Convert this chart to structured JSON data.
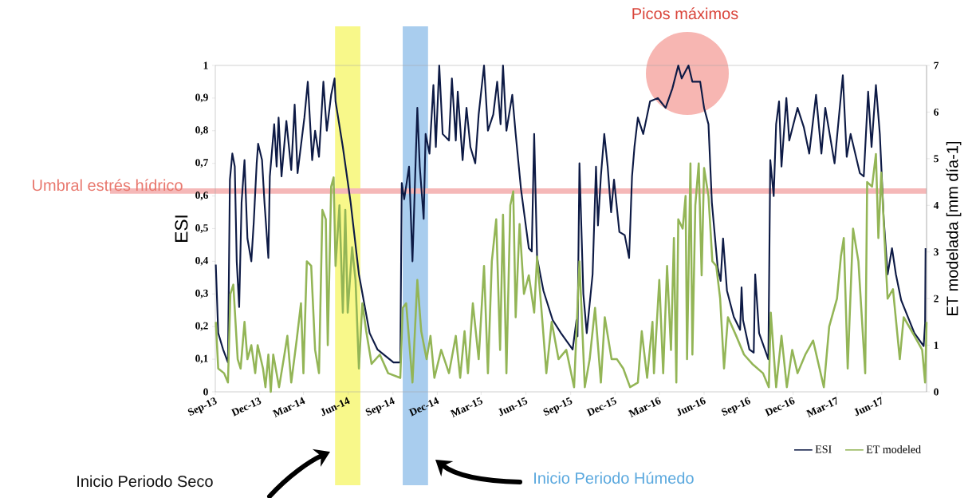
{
  "chart_data": {
    "type": "line",
    "xlim": [
      "2013-09-01",
      "2017-09-01"
    ],
    "xticks": [
      {
        "value": "2013-09-01",
        "label": "Sep-13"
      },
      {
        "value": "2013-12-01",
        "label": "Dec-13"
      },
      {
        "value": "2014-03-01",
        "label": "Mar-14"
      },
      {
        "value": "2014-06-01",
        "label": "Jun-14"
      },
      {
        "value": "2014-09-01",
        "label": "Sep-14"
      },
      {
        "value": "2014-12-01",
        "label": "Dec-14"
      },
      {
        "value": "2015-03-01",
        "label": "Mar-15"
      },
      {
        "value": "2015-06-01",
        "label": "Jun-15"
      },
      {
        "value": "2015-09-01",
        "label": "Sep-15"
      },
      {
        "value": "2015-12-01",
        "label": "Dec-15"
      },
      {
        "value": "2016-03-01",
        "label": "Mar-16"
      },
      {
        "value": "2016-06-01",
        "label": "Jun-16"
      },
      {
        "value": "2016-09-01",
        "label": "Sep-16"
      },
      {
        "value": "2016-12-01",
        "label": "Dec-16"
      },
      {
        "value": "2017-03-01",
        "label": "Mar-17"
      },
      {
        "value": "2017-06-01",
        "label": "Jun-17"
      }
    ],
    "ylabel": "ESI",
    "y2label": "ET modelada [mm día-1]",
    "ylim": [
      0,
      1
    ],
    "yticks": [
      0,
      {
        "value": 0.1,
        "label": "0,1"
      },
      {
        "value": 0.2,
        "label": "0,2"
      },
      {
        "value": 0.3,
        "label": "0,3"
      },
      {
        "value": 0.4,
        "label": "0,4"
      },
      {
        "value": 0.5,
        "label": "0,5"
      },
      {
        "value": 0.6,
        "label": "0,6"
      },
      {
        "value": 0.7,
        "label": "0,7"
      },
      {
        "value": 0.8,
        "label": "0,8"
      },
      {
        "value": 0.9,
        "label": "0,9"
      },
      1
    ],
    "y2lim": [
      0,
      7
    ],
    "y2ticks": [
      0,
      1,
      2,
      3,
      4,
      5,
      6,
      7
    ],
    "legend": "bottom right",
    "series": [
      {
        "name": "ESI",
        "color": "#0d1a45",
        "x": [
          "2013-09-02",
          "2013-09-07",
          "2013-09-17",
          "2013-09-27",
          "2013-10-01",
          "2013-10-06",
          "2013-10-11",
          "2013-10-15",
          "2013-10-20",
          "2013-10-25",
          "2013-10-31",
          "2013-11-06",
          "2013-11-14",
          "2013-11-19",
          "2013-11-25",
          "2013-11-28",
          "2013-12-06",
          "2013-12-11",
          "2013-12-19",
          "2013-12-22",
          "2013-12-31",
          "2014-01-05",
          "2014-01-09",
          "2014-01-15",
          "2014-01-25",
          "2014-02-04",
          "2014-02-11",
          "2014-02-17",
          "2014-03-03",
          "2014-03-10",
          "2014-03-19",
          "2014-03-25",
          "2014-04-02",
          "2014-04-11",
          "2014-04-18",
          "2014-04-27",
          "2014-05-04",
          "2014-05-06",
          "2014-05-21",
          "2014-06-06",
          "2014-06-23",
          "2014-07-15",
          "2014-07-31",
          "2014-09-02",
          "2014-09-16",
          "2014-09-19",
          "2014-09-24",
          "2014-10-04",
          "2014-10-11",
          "2014-10-21",
          "2014-10-26",
          "2014-11-03",
          "2014-11-07",
          "2014-11-15",
          "2014-11-23",
          "2014-11-28",
          "2014-12-05",
          "2014-12-12",
          "2014-12-25",
          "2014-12-31",
          "2015-01-08",
          "2015-01-12",
          "2015-01-22",
          "2015-01-30",
          "2015-02-07",
          "2015-02-17",
          "2015-02-24",
          "2015-03-07",
          "2015-03-15",
          "2015-03-26",
          "2015-04-03",
          "2015-04-10",
          "2015-04-15",
          "2015-04-22",
          "2015-05-04",
          "2015-05-11",
          "2015-05-22",
          "2015-06-07",
          "2015-06-13",
          "2015-06-18",
          "2015-06-24",
          "2015-07-07",
          "2015-07-26",
          "2015-08-12",
          "2015-09-05",
          "2015-09-13",
          "2015-09-15",
          "2015-09-19",
          "2015-09-27",
          "2015-10-04",
          "2015-10-10",
          "2015-10-16",
          "2015-10-23",
          "2015-10-27",
          "2015-11-02",
          "2015-11-09",
          "2015-11-16",
          "2015-11-23",
          "2015-11-29",
          "2015-12-10",
          "2015-12-21",
          "2015-12-30",
          "2016-01-05",
          "2016-01-10",
          "2016-01-17",
          "2016-01-28",
          "2016-02-11",
          "2016-02-27",
          "2016-03-14",
          "2016-03-28",
          "2016-04-09",
          "2016-04-16",
          "2016-04-30",
          "2016-05-08",
          "2016-05-24",
          "2016-06-01",
          "2016-06-10",
          "2016-06-17",
          "2016-06-29",
          "2016-07-05",
          "2016-07-10",
          "2016-07-18",
          "2016-08-01",
          "2016-08-14",
          "2016-08-17",
          "2016-08-20",
          "2016-09-02",
          "2016-09-11",
          "2016-09-14",
          "2016-09-22",
          "2016-10-11",
          "2016-10-15",
          "2016-10-22",
          "2016-10-27",
          "2016-11-02",
          "2016-11-07",
          "2016-11-17",
          "2016-11-23",
          "2016-12-10",
          "2016-12-23",
          "2017-01-03",
          "2017-01-17",
          "2017-01-28",
          "2017-02-05",
          "2017-02-24",
          "2017-03-13",
          "2017-03-21",
          "2017-03-29",
          "2017-04-17",
          "2017-04-25",
          "2017-05-04",
          "2017-05-11",
          "2017-05-20",
          "2017-05-28",
          "2017-06-05",
          "2017-06-13",
          "2017-06-22",
          "2017-06-30",
          "2017-07-11",
          "2017-08-07",
          "2017-08-26",
          "2017-08-29",
          "2017-08-30"
        ],
        "values": [
          0.39,
          0.18,
          0.13,
          0.09,
          0.65,
          0.73,
          0.69,
          0.4,
          0.26,
          0.58,
          0.71,
          0.47,
          0.4,
          0.52,
          0.7,
          0.76,
          0.71,
          0.58,
          0.41,
          0.66,
          0.82,
          0.69,
          0.84,
          0.66,
          0.83,
          0.68,
          0.88,
          0.67,
          0.84,
          0.95,
          0.71,
          0.8,
          0.72,
          0.95,
          0.8,
          0.91,
          0.96,
          0.89,
          0.75,
          0.58,
          0.36,
          0.18,
          0.13,
          0.09,
          0.09,
          0.64,
          0.59,
          0.69,
          0.4,
          0.87,
          0.69,
          0.53,
          0.79,
          0.73,
          0.94,
          0.75,
          1.0,
          0.79,
          0.77,
          0.96,
          0.77,
          0.92,
          0.71,
          0.87,
          0.75,
          0.7,
          0.85,
          1.0,
          0.8,
          0.85,
          0.95,
          0.82,
          1.0,
          0.8,
          0.91,
          0.79,
          0.62,
          0.44,
          0.43,
          0.79,
          0.41,
          0.31,
          0.22,
          0.18,
          0.13,
          0.22,
          0.17,
          0.7,
          0.3,
          0.18,
          0.27,
          0.36,
          0.69,
          0.51,
          0.66,
          0.79,
          0.69,
          0.55,
          0.65,
          0.49,
          0.48,
          0.41,
          0.66,
          0.75,
          0.84,
          0.79,
          0.89,
          0.9,
          0.87,
          0.93,
          1.0,
          0.96,
          1.0,
          0.95,
          0.95,
          0.87,
          0.82,
          0.58,
          0.38,
          0.34,
          0.47,
          0.31,
          0.23,
          0.19,
          0.32,
          0.22,
          0.13,
          0.12,
          0.36,
          0.18,
          0.1,
          0.71,
          0.6,
          0.82,
          0.89,
          0.69,
          0.9,
          0.77,
          0.87,
          0.81,
          0.73,
          0.91,
          0.73,
          0.87,
          0.7,
          0.97,
          0.72,
          0.79,
          0.67,
          0.66,
          0.92,
          0.75,
          0.94,
          0.79,
          0.53,
          0.36,
          0.44,
          0.36,
          0.28,
          0.18,
          0.14,
          0.21,
          0.44
        ]
      },
      {
        "name": "ET modeled",
        "color": "#93b556",
        "axis": "y2",
        "x": [
          "2013-09-02",
          "2013-09-07",
          "2013-09-19",
          "2013-09-27",
          "2013-10-02",
          "2013-10-08",
          "2013-10-17",
          "2013-10-23",
          "2013-10-31",
          "2013-11-06",
          "2013-11-14",
          "2013-11-22",
          "2013-11-27",
          "2013-12-08",
          "2013-12-13",
          "2013-12-19",
          "2013-12-24",
          "2013-12-29",
          "2014-01-10",
          "2014-01-21",
          "2014-01-27",
          "2014-02-04",
          "2014-02-15",
          "2014-02-24",
          "2014-03-01",
          "2014-03-08",
          "2014-03-17",
          "2014-03-25",
          "2014-04-02",
          "2014-04-09",
          "2014-04-16",
          "2014-04-20",
          "2014-04-27",
          "2014-05-02",
          "2014-05-06",
          "2014-05-14",
          "2014-05-21",
          "2014-05-26",
          "2014-05-31",
          "2014-06-09",
          "2014-06-16",
          "2014-06-23",
          "2014-06-30",
          "2014-07-08",
          "2014-07-19",
          "2014-08-05",
          "2014-08-22",
          "2014-09-16",
          "2014-09-21",
          "2014-09-28",
          "2014-10-11",
          "2014-10-21",
          "2014-10-29",
          "2014-11-09",
          "2014-11-17",
          "2014-11-25",
          "2014-12-09",
          "2014-12-25",
          "2015-01-08",
          "2015-01-17",
          "2015-01-26",
          "2015-02-02",
          "2015-02-12",
          "2015-02-24",
          "2015-03-07",
          "2015-03-15",
          "2015-03-23",
          "2015-04-01",
          "2015-04-09",
          "2015-04-15",
          "2015-04-22",
          "2015-04-30",
          "2015-05-06",
          "2015-05-11",
          "2015-05-19",
          "2015-05-28",
          "2015-06-07",
          "2015-06-18",
          "2015-06-24",
          "2015-07-05",
          "2015-07-13",
          "2015-07-24",
          "2015-08-07",
          "2015-08-23",
          "2015-09-08",
          "2015-09-19",
          "2015-09-30",
          "2015-10-10",
          "2015-10-21",
          "2015-11-02",
          "2015-11-10",
          "2015-11-24",
          "2015-12-05",
          "2015-12-18",
          "2016-01-01",
          "2016-01-17",
          "2016-01-25",
          "2016-02-05",
          "2016-02-16",
          "2016-02-19",
          "2016-03-01",
          "2016-03-09",
          "2016-03-17",
          "2016-03-25",
          "2016-03-31",
          "2016-04-05",
          "2016-04-09",
          "2016-04-18",
          "2016-04-24",
          "2016-04-27",
          "2016-05-04",
          "2016-05-08",
          "2016-05-14",
          "2016-05-21",
          "2016-05-27",
          "2016-06-01",
          "2016-06-10",
          "2016-06-18",
          "2016-06-26",
          "2016-07-04",
          "2016-07-12",
          "2016-07-20",
          "2016-08-06",
          "2016-08-22",
          "2016-09-08",
          "2016-09-30",
          "2016-10-12",
          "2016-10-16",
          "2016-10-27",
          "2016-11-07",
          "2016-11-18",
          "2016-11-29",
          "2016-12-10",
          "2016-12-26",
          "2017-01-11",
          "2017-02-02",
          "2017-02-13",
          "2017-03-01",
          "2017-03-09",
          "2017-03-15",
          "2017-03-23",
          "2017-04-03",
          "2017-04-14",
          "2017-04-28",
          "2017-05-02",
          "2017-05-12",
          "2017-05-20",
          "2017-05-25",
          "2017-05-31",
          "2017-06-08",
          "2017-06-13",
          "2017-06-24",
          "2017-07-08",
          "2017-07-16",
          "2017-08-07",
          "2017-08-23",
          "2017-08-29",
          "2017-09-01"
        ],
        "values": [
          1.5,
          0.5,
          0.4,
          0.2,
          2.1,
          2.3,
          0.7,
          0.5,
          1.5,
          0.7,
          1.0,
          0.4,
          1.0,
          0.5,
          0.1,
          0.8,
          0.0,
          0.8,
          0.1,
          0.8,
          1.2,
          0.2,
          1.1,
          1.9,
          0.4,
          2.8,
          2.7,
          0.9,
          0.4,
          3.9,
          3.7,
          1.0,
          4.4,
          4.6,
          2.7,
          4.0,
          1.7,
          3.9,
          1.7,
          3.1,
          2.4,
          0.5,
          1.9,
          1.3,
          0.6,
          0.8,
          0.4,
          0.3,
          1.8,
          1.9,
          0.2,
          2.4,
          1.3,
          0.7,
          1.2,
          0.3,
          0.9,
          0.4,
          1.2,
          0.3,
          1.3,
          0.4,
          1.9,
          0.7,
          2.7,
          0.4,
          2.8,
          3.7,
          0.9,
          3.8,
          0.4,
          4.0,
          4.3,
          1.6,
          3.6,
          2.1,
          2.5,
          1.7,
          2.9,
          1.5,
          0.4,
          1.5,
          0.7,
          0.9,
          0.1,
          2.8,
          0.1,
          0.7,
          1.8,
          0.2,
          1.6,
          0.7,
          0.7,
          0.5,
          0.1,
          0.2,
          1.3,
          0.3,
          1.5,
          0.4,
          2.4,
          0.4,
          2.7,
          0.9,
          3.3,
          0.2,
          3.7,
          3.5,
          4.2,
          0.7,
          4.9,
          0.8,
          4.0,
          4.9,
          2.5,
          4.8,
          4.2,
          2.8,
          2.7,
          2.0,
          0.5,
          1.6,
          1.2,
          0.8,
          0.6,
          0.4,
          0.1,
          1.7,
          0.1,
          1.2,
          0.1,
          0.9,
          0.4,
          0.8,
          1.1,
          0.1,
          1.4,
          2.0,
          2.9,
          3.3,
          0.5,
          3.5,
          2.8,
          0.4,
          4.5,
          4.4,
          5.1,
          3.3,
          4.7,
          3.0,
          2.0,
          2.2,
          0.7,
          1.6,
          1.2,
          0.9,
          0.2,
          1.5
        ]
      }
    ],
    "ref_lines": [
      {
        "axis": "y",
        "value": 0.615,
        "label": "Umbral estrés hídrico",
        "color": "#f5b8b8"
      }
    ],
    "bands": [
      {
        "axis": "x",
        "from": "2014-05-05",
        "to": "2014-06-26",
        "color": "#f8f88a"
      },
      {
        "axis": "x",
        "from": "2014-09-21",
        "to": "2014-11-12",
        "color": "#a9cdee"
      }
    ],
    "annotations": [
      "Picos máximos",
      "Inicio Periodo Seco",
      "Inicio Periodo Húmedo"
    ]
  }
}
